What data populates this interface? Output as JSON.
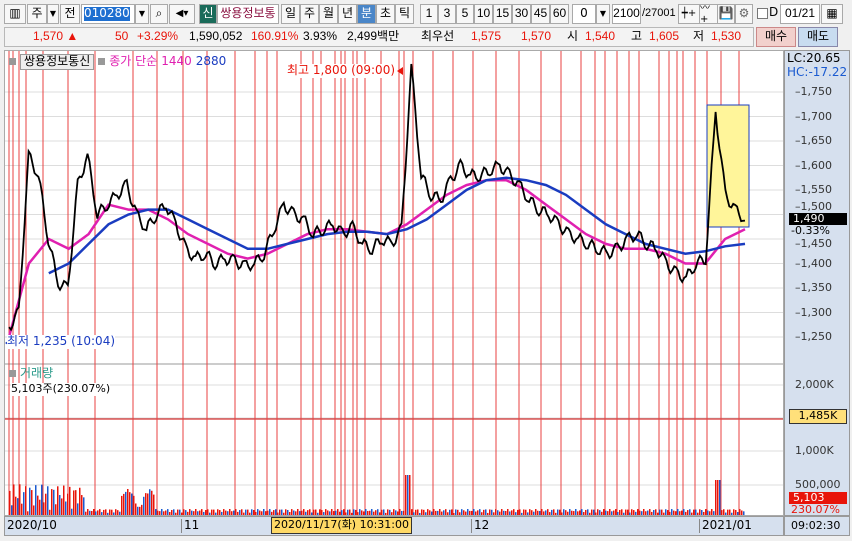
{
  "toolbar": {
    "period_unit": "주",
    "prev": "전",
    "code": "010280",
    "badge": "신",
    "stock_name": "쌍용정보통",
    "periods": [
      "일",
      "주",
      "월",
      "년",
      "분",
      "초",
      "틱"
    ],
    "active_period": "분",
    "intervals": [
      "1",
      "3",
      "5",
      "10",
      "15",
      "30",
      "45",
      "60"
    ],
    "offset": "0",
    "count": "2100",
    "total": "/27001",
    "d_label": "D",
    "date": "01/21"
  },
  "quote": {
    "price": "1,570",
    "arrow": "▲",
    "change": "50",
    "change_pct": "+3.29%",
    "volume": "1,590,052",
    "vol_ratio": "160.91%",
    "turnover": "3.93%",
    "amount": "2,499백만",
    "best_label": "최우선",
    "ask": "1,575",
    "bid": "1,570",
    "open_label": "시",
    "open": "1,540",
    "high_label": "고",
    "high": "1,605",
    "low_label": "저",
    "low": "1,530",
    "buy": "매수",
    "sell": "매도"
  },
  "legend": {
    "name": "쌍용정보통신",
    "ma_label": "종가 단순",
    "ma1": "1440",
    "ma2": "2880"
  },
  "annotations": {
    "high": "최고 1,800 (09:00)",
    "low": "최저 1,235 (10:04)",
    "lc": "LC:20.65",
    "hc": "HC:-17.22",
    "last": "1,490",
    "last_pct": "-0.33%"
  },
  "volume": {
    "title": "거래량",
    "value": "5,103주(230.07%)",
    "last": "5,103",
    "last_pct": "230.07%",
    "ref": "1,485K"
  },
  "x_axis": {
    "labels": [
      "2020/10",
      "11",
      "12",
      "2021/01"
    ],
    "cursor": "2020/11/17(화) 10:31:00",
    "time": "09:02:30"
  },
  "colors": {
    "up": "#e8140a",
    "ma1": "#e020b0",
    "ma2": "#1a3cc0",
    "price": "#000000",
    "highlight": "#fff59a"
  },
  "chart_data": {
    "type": "line",
    "y_ticks": [
      1750,
      1700,
      1650,
      1600,
      1550,
      1500,
      1450,
      1400,
      1350,
      1300,
      1250
    ],
    "ylim": [
      1190,
      1810
    ],
    "close": [
      1270,
      1300,
      1620,
      1580,
      1450,
      1360,
      1350,
      1560,
      1620,
      1500,
      1520,
      1540,
      1560,
      1500,
      1470,
      1500,
      1520,
      1480,
      1430,
      1410,
      1420,
      1400,
      1410,
      1405,
      1395,
      1400,
      1420,
      1470,
      1520,
      1500,
      1490,
      1460,
      1470,
      1480,
      1460,
      1475,
      1440,
      1430,
      1450,
      1440,
      1470,
      1800,
      1580,
      1540,
      1530,
      1570,
      1600,
      1580,
      1580,
      1590,
      1600,
      1580,
      1560,
      1530,
      1510,
      1500,
      1480,
      1460,
      1450,
      1440,
      1430,
      1420,
      1430,
      1450,
      1460,
      1440,
      1430,
      1400,
      1380,
      1370,
      1400,
      1410,
      1710,
      1540,
      1510,
      1490
    ],
    "ma1440": [
      1250,
      1400,
      1450,
      1430,
      1460,
      1520,
      1510,
      1510,
      1490,
      1460,
      1440,
      1420,
      1410,
      1420,
      1440,
      1460,
      1470,
      1470,
      1465,
      1460,
      1480,
      1510,
      1540,
      1560,
      1570,
      1570,
      1550,
      1520,
      1490,
      1460,
      1440,
      1430,
      1430,
      1420,
      1400,
      1400,
      1450,
      1470
    ],
    "ma2880": [
      null,
      null,
      1380,
      1400,
      1440,
      1480,
      1500,
      1510,
      1510,
      1490,
      1470,
      1450,
      1430,
      1430,
      1440,
      1450,
      1460,
      1465,
      1465,
      1460,
      1470,
      1490,
      1520,
      1550,
      1570,
      1575,
      1570,
      1560,
      1540,
      1510,
      1480,
      1460,
      1440,
      1430,
      1420,
      1425,
      1435,
      1440
    ],
    "volume_ticks": [
      "2,000K",
      "1,000K",
      "500,000"
    ]
  }
}
